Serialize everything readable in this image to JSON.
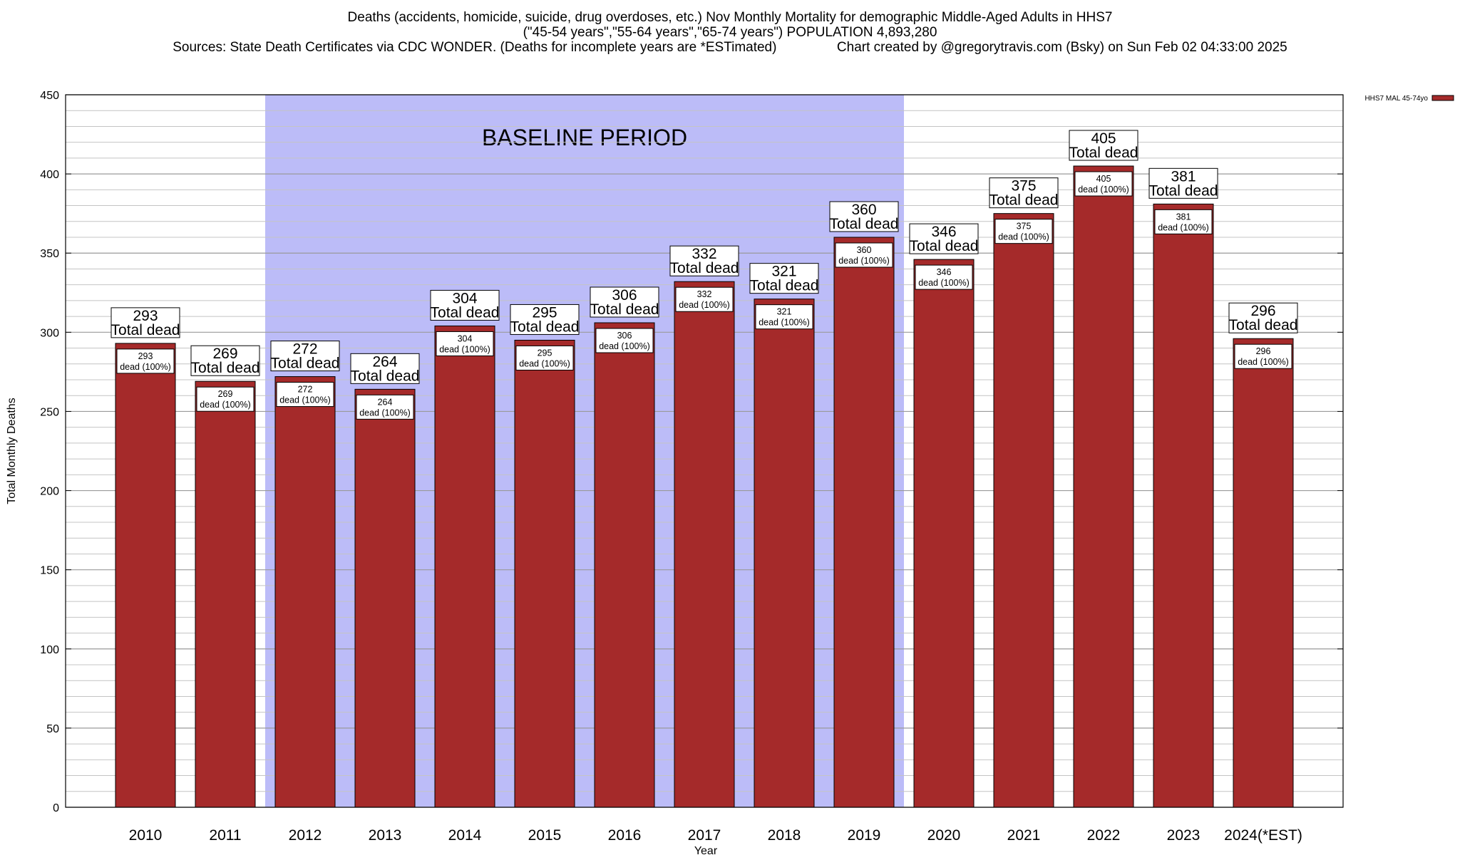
{
  "header": {
    "line1": "Deaths (accidents, homicide, suicide, drug overdoses, etc.) Nov Monthly Mortality for demographic Middle-Aged Adults in HHS7",
    "line2": "(\"45-54 years\",\"55-64 years\",\"65-74 years\") POPULATION 4,893,280",
    "line3": "Sources: State Death Certificates via CDC WONDER. (Deaths for incomplete years are *ESTimated)                Chart created by @gregorytravis.com (Bsky) on Sun Feb 02 04:33:00 2025"
  },
  "chart_data": {
    "type": "bar",
    "title": "Deaths (accidents, homicide, suicide, drug overdoses, etc.) Nov Monthly Mortality for demographic Middle-Aged Adults in HHS7",
    "xlabel": "Year",
    "ylabel": "Total Monthly Deaths",
    "ylim": [
      0,
      450
    ],
    "yticks": [
      0,
      50,
      100,
      150,
      200,
      250,
      300,
      350,
      400,
      450
    ],
    "minor_grid_step": 10,
    "grid": true,
    "legend_position": "top-right",
    "categories": [
      "2010",
      "2011",
      "2012",
      "2013",
      "2014",
      "2015",
      "2016",
      "2017",
      "2018",
      "2019",
      "2020",
      "2021",
      "2022",
      "2023",
      "2024(*EST)"
    ],
    "series": [
      {
        "name": "HHS7 MAL 45-74yo",
        "color": "#a52a2a",
        "values": [
          293,
          269,
          272,
          264,
          304,
          295,
          306,
          332,
          321,
          360,
          346,
          375,
          405,
          381,
          296
        ]
      }
    ],
    "outer_label_suffix": "Total dead",
    "inner_label_suffix": "dead (100%)",
    "shaded_region": {
      "label": "BASELINE PERIOD",
      "from_category": "2012",
      "to_category": "2019",
      "color": "#bcbcf8"
    }
  }
}
